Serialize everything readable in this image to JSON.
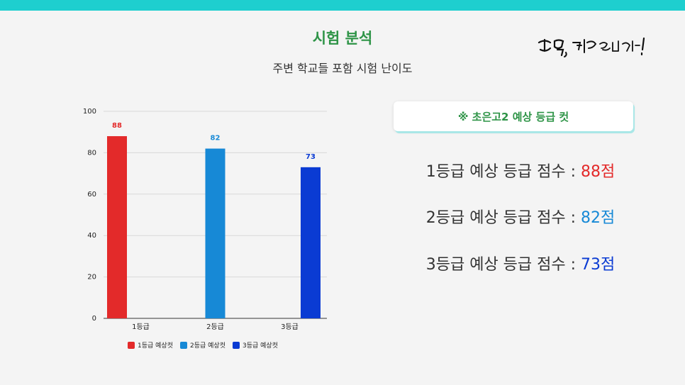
{
  "header": {
    "title": "시험 분석",
    "subtitle": "주변 학교들 포함 시험 난이도",
    "brand_text": "무결, 대학을 바꾸다!"
  },
  "colors": {
    "top_bar": "#1ecfcf",
    "title": "#2e9447",
    "grade1": "#e32a2a",
    "grade2": "#1789d6",
    "grade3": "#0a3bd3"
  },
  "chart_data": {
    "type": "bar",
    "categories": [
      "1등급",
      "2등급",
      "3등급"
    ],
    "series": [
      {
        "name": "1등급 예상컷",
        "values": [
          88,
          null,
          null
        ],
        "color": "#e32a2a"
      },
      {
        "name": "2등급 예상컷",
        "values": [
          null,
          82,
          null
        ],
        "color": "#1789d6"
      },
      {
        "name": "3등급 예상컷",
        "values": [
          null,
          null,
          73
        ],
        "color": "#0a3bd3"
      }
    ],
    "yticks": [
      "0",
      "20",
      "40",
      "60",
      "80",
      "100"
    ],
    "ylim": [
      0,
      100
    ],
    "grid": true,
    "legend_position": "bottom"
  },
  "note": {
    "label": "※ 초은고2 예상 등급 컷"
  },
  "scores": [
    {
      "label": "1등급 예상 등급 점수 : ",
      "value": "88점",
      "color": "#e32a2a"
    },
    {
      "label": "2등급 예상 등급 점수 : ",
      "value": "82점",
      "color": "#1789d6"
    },
    {
      "label": "3등급 예상 등급 점수 : ",
      "value": "73점",
      "color": "#0a3bd3"
    }
  ]
}
